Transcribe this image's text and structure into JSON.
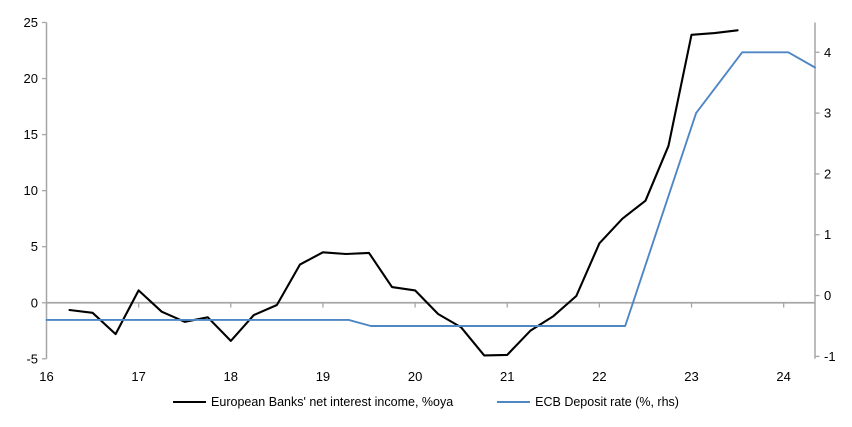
{
  "chart_data": {
    "type": "line",
    "title": "",
    "x_axis": {
      "range": [
        16,
        24.34
      ],
      "ticks": [
        16,
        17,
        18,
        19,
        20,
        21,
        22,
        23,
        24
      ],
      "tick_labels": [
        "16",
        "17",
        "18",
        "19",
        "20",
        "21",
        "22",
        "23",
        "24"
      ]
    },
    "left_axis": {
      "range": [
        -5,
        25
      ],
      "ticks": [
        -5,
        0,
        5,
        10,
        15,
        20,
        25
      ],
      "tick_labels": [
        "-5",
        "0",
        "5",
        "10",
        "15",
        "20",
        "25"
      ]
    },
    "right_axis": {
      "range": [
        -1.04,
        4.49
      ],
      "ticks": [
        -1,
        0,
        1,
        2,
        3,
        4
      ],
      "tick_labels": [
        "-1",
        "0",
        "1",
        "2",
        "3",
        "4"
      ]
    },
    "grid": "zero-line-only",
    "legend_position": "bottom-center",
    "series": [
      {
        "name": "European Banks' net interest income, %oya",
        "axis": "left",
        "color": "#000000",
        "points": [
          [
            16.25,
            -0.65
          ],
          [
            16.5,
            -0.9
          ],
          [
            16.75,
            -2.8
          ],
          [
            17.0,
            1.1
          ],
          [
            17.25,
            -0.8
          ],
          [
            17.5,
            -1.7
          ],
          [
            17.75,
            -1.3
          ],
          [
            18.0,
            -3.4
          ],
          [
            18.25,
            -1.1
          ],
          [
            18.5,
            -0.2
          ],
          [
            18.75,
            3.4
          ],
          [
            19.0,
            4.5
          ],
          [
            19.25,
            4.35
          ],
          [
            19.5,
            4.45
          ],
          [
            19.75,
            1.4
          ],
          [
            20.0,
            1.1
          ],
          [
            20.25,
            -1.0
          ],
          [
            20.5,
            -2.2
          ],
          [
            20.75,
            -4.7
          ],
          [
            21.0,
            -4.65
          ],
          [
            21.25,
            -2.5
          ],
          [
            21.5,
            -1.2
          ],
          [
            21.75,
            0.6
          ],
          [
            22.0,
            5.3
          ],
          [
            22.25,
            7.5
          ],
          [
            22.5,
            9.1
          ],
          [
            22.75,
            14.0
          ],
          [
            23.0,
            23.9
          ],
          [
            23.25,
            24.05
          ],
          [
            23.5,
            24.3
          ]
        ]
      },
      {
        "name": "ECB Deposit rate (%, rhs)",
        "axis": "right",
        "color": "#4f86c4",
        "points": [
          [
            16.0,
            -0.4
          ],
          [
            19.28,
            -0.4
          ],
          [
            19.52,
            -0.5
          ],
          [
            22.28,
            -0.5
          ],
          [
            23.05,
            3.0
          ],
          [
            23.55,
            4.0
          ],
          [
            24.05,
            4.0
          ],
          [
            24.34,
            3.75
          ]
        ]
      }
    ]
  },
  "colors": {
    "axis": "#a6a6a6",
    "zero_line": "#a6a6a6",
    "text": "#000000",
    "background": "#ffffff"
  }
}
